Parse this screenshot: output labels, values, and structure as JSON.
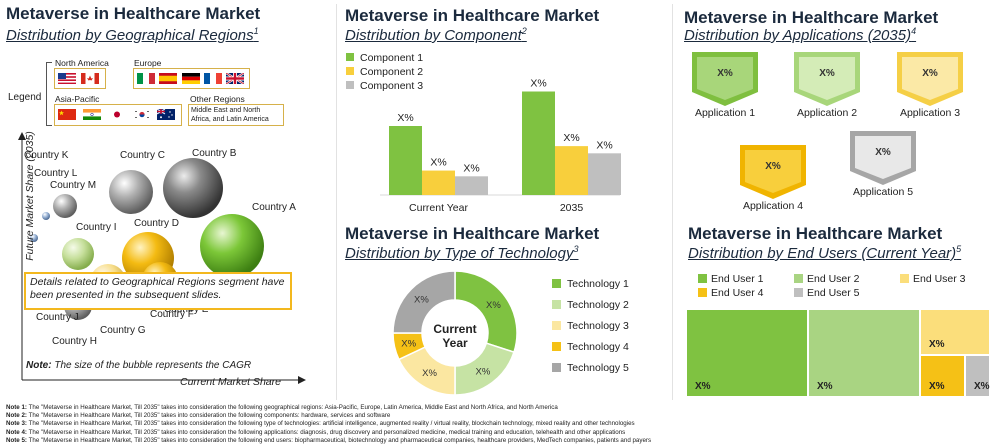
{
  "panels": {
    "geo": {
      "title": "Metaverse in Healthcare Market",
      "subtitle": "Distribution by Geographical Regions",
      "sup": "1",
      "legend_label": "Legend",
      "regions": {
        "north_america": "North America",
        "europe": "Europe",
        "asia_pacific": "Asia-Pacific",
        "other": "Other Regions",
        "other_desc": "Middle East and North Africa, and Latin America"
      },
      "note_box": "Details related to Geographical Regions segment have been presented in the subsequent slides.",
      "note_label": "Note:",
      "note_text": "The size of the bubble represents the CAGR",
      "colors": {
        "gray": "#8c8c8c",
        "dark": "#595959",
        "green": "#6fbf2a",
        "yellow": "#f0b400",
        "lightgreen": "#c6df9b",
        "lightyellow": "#f7de8c"
      }
    },
    "component": {
      "title": "Metaverse in Healthcare Market",
      "subtitle": "Distribution by Component",
      "sup": "2"
    },
    "technology": {
      "title": "Metaverse in Healthcare Market",
      "subtitle": "Distribution by Type of Technology",
      "sup": "3",
      "center_label": "Current Year"
    },
    "applications": {
      "title": "Metaverse in Healthcare Market",
      "subtitle": "Distribution by Applications (2035)",
      "sup": "4",
      "items": [
        {
          "label": "Application 1",
          "value": "X%",
          "fill": "#a8d67a",
          "border": "#7fbf3f"
        },
        {
          "label": "Application 2",
          "value": "X%",
          "fill": "#d4ecb7",
          "border": "#a8d67a"
        },
        {
          "label": "Application 3",
          "value": "X%",
          "fill": "#fbe9a6",
          "border": "#f5cf46"
        },
        {
          "label": "Application 4",
          "value": "X%",
          "fill": "#f8cf3c",
          "border": "#f0b400"
        },
        {
          "label": "Application 5",
          "value": "X%",
          "fill": "#e8e8e8",
          "border": "#a6a6a6"
        }
      ]
    },
    "end_users": {
      "title": "Metaverse in Healthcare Market",
      "subtitle": "Distribution by End Users (Current Year)",
      "sup": "5"
    }
  },
  "chart_data": [
    {
      "type": "scatter",
      "xlabel": "Current Market Share",
      "ylabel": "Future Market Share (2035)",
      "points": [
        {
          "label": "Country A",
          "color": "green"
        },
        {
          "label": "Country B",
          "color": "dark"
        },
        {
          "label": "Country C",
          "color": "gray"
        },
        {
          "label": "Country D",
          "color": "yellow"
        },
        {
          "label": "Country E",
          "color": "yellow"
        },
        {
          "label": "Country F",
          "color": "lightyellow"
        },
        {
          "label": "Country G",
          "color": "lightgreen"
        },
        {
          "label": "Country H",
          "color": "gray"
        },
        {
          "label": "Country I",
          "color": "lightgreen"
        },
        {
          "label": "Country J",
          "color": "lightyellow"
        },
        {
          "label": "Country K",
          "color": "gray"
        },
        {
          "label": "Country L",
          "color": "gray"
        },
        {
          "label": "Country M",
          "color": "gray"
        }
      ]
    },
    {
      "type": "bar",
      "categories": [
        "Current Year",
        "2035"
      ],
      "series": [
        {
          "name": "Component 1",
          "color": "#7fc241",
          "values": [
            48,
            72
          ],
          "label": "X%"
        },
        {
          "name": "Component 2",
          "color": "#f8cf3c",
          "values": [
            17,
            34
          ],
          "label": "X%"
        },
        {
          "name": "Component 3",
          "color": "#bfbfbf",
          "values": [
            13,
            29
          ],
          "label": "X%"
        }
      ]
    },
    {
      "type": "pie",
      "slices": [
        {
          "name": "Technology 1",
          "value": 30,
          "color": "#7fc241",
          "label": "X%"
        },
        {
          "name": "Technology 2",
          "value": 20,
          "color": "#c6e3a4",
          "label": "X%"
        },
        {
          "name": "Technology 3",
          "value": 18,
          "color": "#fbe7a1",
          "label": "X%"
        },
        {
          "name": "Technology 4",
          "value": 7,
          "color": "#f5c116",
          "label": "X%"
        },
        {
          "name": "Technology 5",
          "value": 25,
          "color": "#a6a6a6",
          "label": "X%"
        }
      ]
    },
    {
      "type": "heatmap",
      "legend": [
        {
          "name": "End User 1",
          "color": "#7fc241"
        },
        {
          "name": "End User 2",
          "color": "#a9d482"
        },
        {
          "name": "End User 3",
          "color": "#fbde7b"
        },
        {
          "name": "End User 4",
          "color": "#f5c116"
        },
        {
          "name": "End User 5",
          "color": "#bfbfbf"
        }
      ],
      "blocks": [
        {
          "name": "End User 1",
          "value": 40,
          "label": "X%"
        },
        {
          "name": "End User 2",
          "value": 37,
          "label": "X%"
        },
        {
          "name": "End User 3",
          "value": 12,
          "label": "X%"
        },
        {
          "name": "End User 4",
          "value": 7,
          "label": "X%"
        },
        {
          "name": "End User 5",
          "value": 4,
          "label": "X%"
        }
      ]
    }
  ],
  "footnotes": [
    {
      "label": "Note 1:",
      "text": "The \"Metaverse in Healthcare Market, Till 2035\" takes into consideration the following geographical regions: Asia-Pacific, Europe, Latin America, Middle East and North Africa, and North America"
    },
    {
      "label": "Note 2:",
      "text": "The \"Metaverse in Healthcare Market, Till 2035\" takes into consideration the following components: hardware, services and software"
    },
    {
      "label": "Note 3:",
      "text": "The \"Metaverse in Healthcare Market, Till 2035\" takes into consideration the following type of technologies: artificial intelligence, augmented reality / virtual reality, blockchain technology, mixed reality and other technologies"
    },
    {
      "label": "Note 4:",
      "text": "The \"Metaverse in Healthcare Market, Till 2035\" takes into consideration the following applications: diagnosis, drug discovery and personalized medicine, medical training and education, telehealth and other applications"
    },
    {
      "label": "Note 5:",
      "text": "The \"Metaverse in Healthcare Market, Till 2035\" takes into consideration the following end users: biopharmaceutical, biotechnology and pharmaceutical companies, healthcare providers, MedTech companies, patients and payers"
    }
  ]
}
